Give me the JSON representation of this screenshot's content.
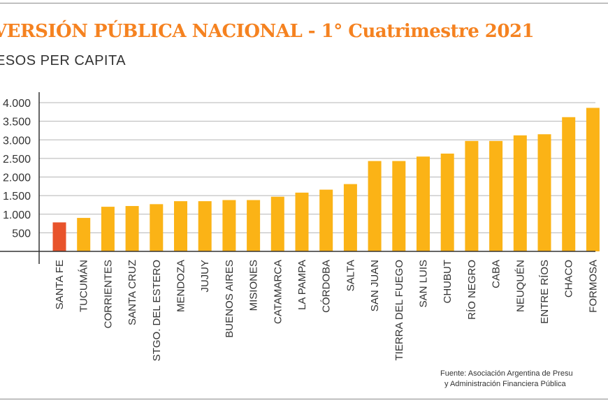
{
  "title": "VERSIÓN PÚBLICA NACIONAL - 1° Cuatrimestre 2021",
  "subtitle": "ESOS PER CAPITA",
  "source": {
    "line1": "Fuente: Asociación Argentina de Presu",
    "line2": "y Administración Financiera Pública"
  },
  "colors": {
    "highlight": "#e8532b",
    "bar": "#fbb316",
    "axis": "#333333",
    "grid": "#b5b5b5",
    "title": "#f58220"
  },
  "chart_data": {
    "type": "bar",
    "title": "VERSIÓN PÚBLICA NACIONAL - 1° Cuatrimestre 2021",
    "ylabel": "ESOS PER CAPITA",
    "xlabel": "",
    "ylim": [
      0,
      4000
    ],
    "yticks": [
      500,
      1000,
      1500,
      2000,
      2500,
      3000,
      3500,
      4000
    ],
    "ytick_labels": [
      "500",
      "1.000",
      "1.500",
      "2.000",
      "2.500",
      "3.000",
      "3.500",
      "4.000"
    ],
    "categories": [
      "SANTA FE",
      "TUCUMÁN",
      "CORRIENTES",
      "SANTA CRUZ",
      "STGO. DEL ESTERO",
      "MENDOZA",
      "JUJUY",
      "BUENOS AIRES",
      "MISIONES",
      "CATAMARCA",
      "LA PAMPA",
      "CÓRDOBA",
      "SALTA",
      "SAN JUAN",
      "TIERRA DEL FUEGO",
      "SAN LUIS",
      "CHUBUT",
      "RÍO NEGRO",
      "CABA",
      "NEUQUÉN",
      "ENTRE RÍOS",
      "CHACO",
      "FORMOSA"
    ],
    "values": [
      780,
      900,
      1200,
      1220,
      1270,
      1350,
      1350,
      1380,
      1380,
      1470,
      1580,
      1660,
      1810,
      2430,
      2430,
      2550,
      2630,
      2970,
      2970,
      3120,
      3150,
      3610,
      3860
    ],
    "highlight": "SANTA FE",
    "grid": true
  }
}
